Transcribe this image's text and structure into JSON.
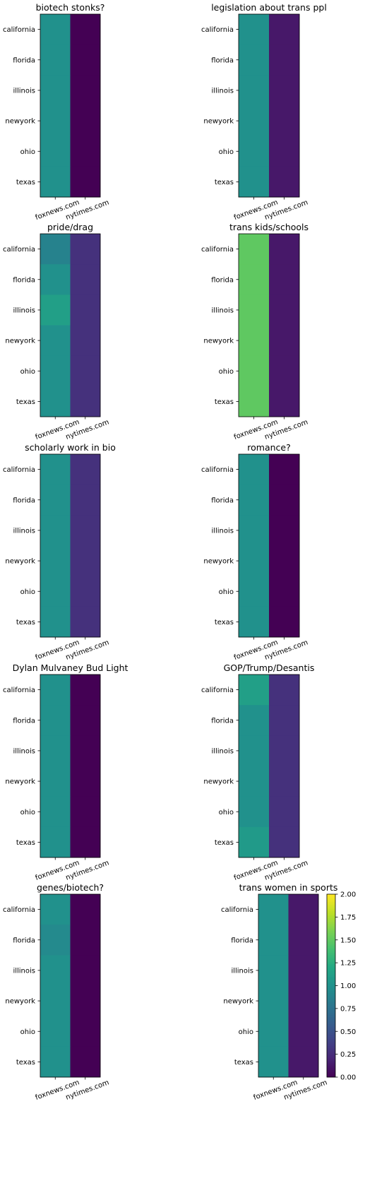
{
  "chart_data": {
    "type": "heatmap",
    "colormap": "viridis",
    "vmin": 0,
    "vmax": 2,
    "rows": [
      "california",
      "florida",
      "illinois",
      "newyork",
      "ohio",
      "texas"
    ],
    "columns": [
      "foxnews.com",
      "nytimes.com"
    ],
    "panels": [
      {
        "title": "biotech stonks?",
        "values": [
          [
            1.0,
            0.0
          ],
          [
            1.0,
            0.0
          ],
          [
            1.0,
            0.0
          ],
          [
            1.0,
            0.0
          ],
          [
            1.0,
            0.0
          ],
          [
            1.0,
            0.0
          ]
        ]
      },
      {
        "title": "legislation about trans ppl",
        "values": [
          [
            1.0,
            0.13
          ],
          [
            1.0,
            0.13
          ],
          [
            1.0,
            0.13
          ],
          [
            1.0,
            0.13
          ],
          [
            1.0,
            0.13
          ],
          [
            1.0,
            0.13
          ]
        ]
      },
      {
        "title": "pride/drag",
        "values": [
          [
            0.88,
            0.28
          ],
          [
            1.0,
            0.28
          ],
          [
            1.12,
            0.28
          ],
          [
            1.0,
            0.28
          ],
          [
            1.0,
            0.28
          ],
          [
            1.0,
            0.28
          ]
        ]
      },
      {
        "title": "trans kids/schools",
        "values": [
          [
            1.5,
            0.13
          ],
          [
            1.5,
            0.13
          ],
          [
            1.5,
            0.13
          ],
          [
            1.5,
            0.13
          ],
          [
            1.5,
            0.13
          ],
          [
            1.5,
            0.13
          ]
        ]
      },
      {
        "title": "scholarly work in bio",
        "values": [
          [
            1.0,
            0.28
          ],
          [
            1.0,
            0.28
          ],
          [
            1.0,
            0.28
          ],
          [
            1.0,
            0.28
          ],
          [
            1.0,
            0.28
          ],
          [
            1.0,
            0.28
          ]
        ]
      },
      {
        "title": "romance?",
        "values": [
          [
            1.0,
            0.0
          ],
          [
            1.0,
            0.0
          ],
          [
            1.0,
            0.0
          ],
          [
            1.0,
            0.0
          ],
          [
            1.0,
            0.0
          ],
          [
            1.0,
            0.0
          ]
        ]
      },
      {
        "title": "Dylan Mulvaney Bud Light",
        "values": [
          [
            1.0,
            0.0
          ],
          [
            1.0,
            0.0
          ],
          [
            1.0,
            0.0
          ],
          [
            1.0,
            0.0
          ],
          [
            1.0,
            0.0
          ],
          [
            1.0,
            0.0
          ]
        ]
      },
      {
        "title": "GOP/Trump/Desantis",
        "values": [
          [
            1.12,
            0.28
          ],
          [
            1.0,
            0.28
          ],
          [
            1.0,
            0.28
          ],
          [
            1.0,
            0.28
          ],
          [
            1.0,
            0.28
          ],
          [
            1.08,
            0.28
          ]
        ]
      },
      {
        "title": "genes/biotech?",
        "values": [
          [
            1.0,
            0.0
          ],
          [
            0.94,
            0.0
          ],
          [
            1.0,
            0.0
          ],
          [
            1.0,
            0.0
          ],
          [
            1.0,
            0.0
          ],
          [
            1.0,
            0.0
          ]
        ]
      },
      {
        "title": "trans women in sports",
        "values": [
          [
            1.0,
            0.13
          ],
          [
            1.0,
            0.13
          ],
          [
            1.0,
            0.13
          ],
          [
            1.0,
            0.13
          ],
          [
            1.0,
            0.13
          ],
          [
            1.0,
            0.13
          ]
        ]
      }
    ],
    "colorbar": {
      "ticks": [
        "0.00",
        "0.25",
        "0.50",
        "0.75",
        "1.00",
        "1.25",
        "1.50",
        "1.75",
        "2.00"
      ]
    },
    "grid": false,
    "legend": "colorbar-right of last panel"
  }
}
